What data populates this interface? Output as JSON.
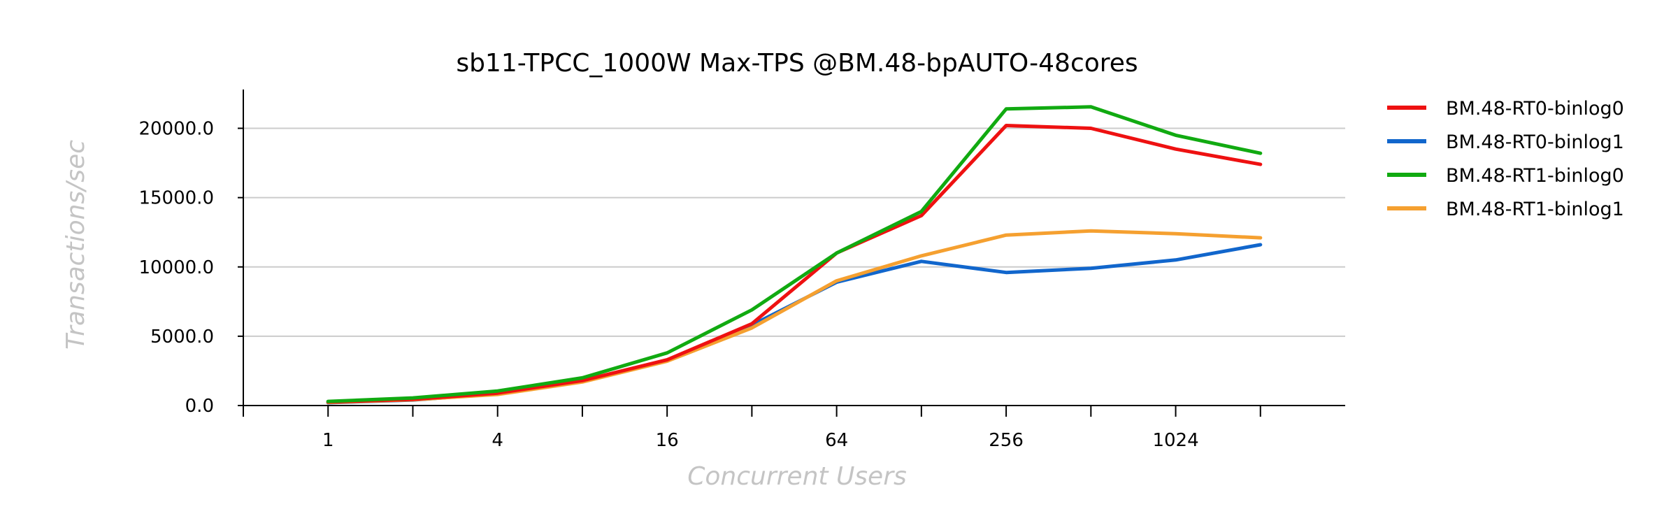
{
  "chart_data": {
    "type": "line",
    "title": "sb11-TPCC_1000W Max-TPS @BM.48-bpAUTO-48cores",
    "xlabel": "Concurrent Users",
    "ylabel": "Transactions/sec",
    "x_scale": "log2",
    "x": [
      1,
      2,
      4,
      8,
      16,
      32,
      64,
      128,
      256,
      512,
      1024,
      2048
    ],
    "x_tick_labels": [
      "1",
      "4",
      "16",
      "64",
      "256",
      "1024"
    ],
    "x_tick_label_values": [
      1,
      4,
      16,
      64,
      256,
      1024
    ],
    "xlim": [
      0.5,
      4096
    ],
    "ylim": [
      0,
      22800
    ],
    "y_ticks": [
      0,
      5000,
      10000,
      15000,
      20000
    ],
    "y_tick_labels": [
      "0.0",
      "5000.0",
      "10000.0",
      "15000.0",
      "20000.0"
    ],
    "grid": "horizontal",
    "legend": "right",
    "series": [
      {
        "name": "BM.48-RT0-binlog0",
        "color": "#ee1111",
        "values": [
          250,
          450,
          900,
          1800,
          3300,
          5900,
          11000,
          13700,
          20200,
          20000,
          18500,
          17400
        ]
      },
      {
        "name": "BM.48-RT0-binlog1",
        "color": "#1166cc",
        "values": [
          200,
          400,
          850,
          1750,
          3250,
          5800,
          8900,
          10400,
          9600,
          9900,
          10500,
          11600
        ]
      },
      {
        "name": "BM.48-RT1-binlog0",
        "color": "#11aa11",
        "values": [
          300,
          550,
          1050,
          2000,
          3800,
          6900,
          11000,
          14000,
          21400,
          21550,
          19500,
          18200
        ]
      },
      {
        "name": "BM.48-RT1-binlog1",
        "color": "#f5a030",
        "values": [
          220,
          420,
          800,
          1700,
          3200,
          5600,
          9000,
          10800,
          12300,
          12600,
          12400,
          12100
        ]
      }
    ]
  }
}
